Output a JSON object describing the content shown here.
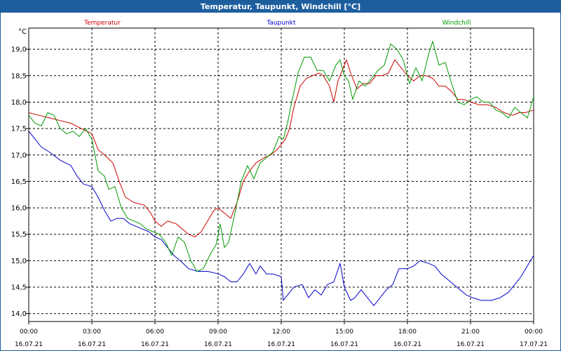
{
  "window": {
    "title": "Temperatur, Taupunkt, Windchill [°C]"
  },
  "chart_data": {
    "type": "line",
    "title": "Temperatur, Taupunkt, Windchill [°C]",
    "ylabel": "°C",
    "xlabel": "",
    "ylim": [
      13.85,
      19.4
    ],
    "xlim": [
      0,
      24
    ],
    "grid": true,
    "yticks": [
      14.0,
      14.5,
      15.0,
      15.5,
      16.0,
      16.5,
      17.0,
      17.5,
      18.0,
      18.5,
      19.0
    ],
    "ytick_labels": [
      "14,0",
      "14,5",
      "15,0",
      "15,5",
      "16,0",
      "16,5",
      "17,0",
      "17,5",
      "18,0",
      "18,5",
      "19,0"
    ],
    "xticks": [
      {
        "x": 0,
        "time": "00:00",
        "date": "16.07.21"
      },
      {
        "x": 3,
        "time": "03:00",
        "date": "16.07.21"
      },
      {
        "x": 6,
        "time": "06:00",
        "date": "16.07.21"
      },
      {
        "x": 9,
        "time": "09:00",
        "date": "16.07.21"
      },
      {
        "x": 12,
        "time": "12:00",
        "date": "16.07.21"
      },
      {
        "x": 15,
        "time": "15:00",
        "date": "16.07.21"
      },
      {
        "x": 18,
        "time": "18:00",
        "date": "16.07.21"
      },
      {
        "x": 21,
        "time": "21:00",
        "date": "16.07.21"
      },
      {
        "x": 24,
        "time": "00:00",
        "date": "17.07.21"
      }
    ],
    "series": [
      {
        "name": "Temperatur",
        "color": "#cc0000",
        "points": [
          [
            0,
            17.8
          ],
          [
            0.5,
            17.75
          ],
          [
            1,
            17.7
          ],
          [
            1.5,
            17.65
          ],
          [
            2,
            17.6
          ],
          [
            2.5,
            17.5
          ],
          [
            3,
            17.4
          ],
          [
            3.3,
            17.1
          ],
          [
            3.6,
            17.0
          ],
          [
            4,
            16.85
          ],
          [
            4.3,
            16.5
          ],
          [
            4.6,
            16.2
          ],
          [
            5,
            16.1
          ],
          [
            5.5,
            16.05
          ],
          [
            5.8,
            15.9
          ],
          [
            6,
            15.75
          ],
          [
            6.3,
            15.65
          ],
          [
            6.6,
            15.75
          ],
          [
            7,
            15.7
          ],
          [
            7.3,
            15.6
          ],
          [
            7.6,
            15.5
          ],
          [
            7.9,
            15.45
          ],
          [
            8.2,
            15.55
          ],
          [
            8.5,
            15.75
          ],
          [
            8.8,
            15.95
          ],
          [
            9.0,
            16.0
          ],
          [
            9.3,
            15.9
          ],
          [
            9.6,
            15.8
          ],
          [
            9.9,
            16.1
          ],
          [
            10.2,
            16.5
          ],
          [
            10.5,
            16.7
          ],
          [
            10.8,
            16.85
          ],
          [
            11.2,
            16.95
          ],
          [
            11.5,
            17.0
          ],
          [
            11.8,
            17.1
          ],
          [
            12.0,
            17.2
          ],
          [
            12.2,
            17.3
          ],
          [
            12.4,
            17.5
          ],
          [
            12.6,
            17.9
          ],
          [
            12.9,
            18.3
          ],
          [
            13.2,
            18.45
          ],
          [
            13.5,
            18.5
          ],
          [
            13.8,
            18.55
          ],
          [
            14.0,
            18.5
          ],
          [
            14.3,
            18.3
          ],
          [
            14.5,
            18.0
          ],
          [
            14.7,
            18.4
          ],
          [
            14.9,
            18.6
          ],
          [
            15.1,
            18.8
          ],
          [
            15.3,
            18.55
          ],
          [
            15.6,
            18.25
          ],
          [
            15.9,
            18.35
          ],
          [
            16.2,
            18.35
          ],
          [
            16.5,
            18.5
          ],
          [
            16.8,
            18.5
          ],
          [
            17.1,
            18.55
          ],
          [
            17.4,
            18.8
          ],
          [
            17.7,
            18.65
          ],
          [
            18.0,
            18.5
          ],
          [
            18.3,
            18.4
          ],
          [
            18.6,
            18.5
          ],
          [
            18.9,
            18.5
          ],
          [
            19.2,
            18.45
          ],
          [
            19.5,
            18.3
          ],
          [
            19.8,
            18.3
          ],
          [
            20.1,
            18.2
          ],
          [
            20.4,
            18.05
          ],
          [
            20.7,
            18.05
          ],
          [
            21.0,
            18.0
          ],
          [
            21.4,
            17.95
          ],
          [
            21.8,
            17.95
          ],
          [
            22.2,
            17.9
          ],
          [
            22.6,
            17.8
          ],
          [
            23.0,
            17.75
          ],
          [
            23.3,
            17.8
          ],
          [
            23.6,
            17.8
          ],
          [
            24.0,
            17.85
          ]
        ]
      },
      {
        "name": "Taupunkt",
        "color": "#0000cc",
        "points": [
          [
            0,
            17.45
          ],
          [
            0.3,
            17.3
          ],
          [
            0.6,
            17.15
          ],
          [
            1,
            17.05
          ],
          [
            1.5,
            16.9
          ],
          [
            2,
            16.8
          ],
          [
            2.3,
            16.6
          ],
          [
            2.6,
            16.45
          ],
          [
            3,
            16.4
          ],
          [
            3.3,
            16.2
          ],
          [
            3.6,
            15.95
          ],
          [
            3.9,
            15.75
          ],
          [
            4.2,
            15.8
          ],
          [
            4.5,
            15.8
          ],
          [
            4.8,
            15.7
          ],
          [
            5.1,
            15.65
          ],
          [
            5.4,
            15.6
          ],
          [
            5.7,
            15.55
          ],
          [
            6.0,
            15.45
          ],
          [
            6.3,
            15.4
          ],
          [
            6.6,
            15.25
          ],
          [
            6.9,
            15.1
          ],
          [
            7.2,
            15.0
          ],
          [
            7.6,
            14.85
          ],
          [
            8.0,
            14.8
          ],
          [
            8.5,
            14.8
          ],
          [
            9.0,
            14.75
          ],
          [
            9.3,
            14.7
          ],
          [
            9.6,
            14.6
          ],
          [
            9.9,
            14.6
          ],
          [
            10.2,
            14.75
          ],
          [
            10.5,
            14.95
          ],
          [
            10.8,
            14.75
          ],
          [
            11.0,
            14.9
          ],
          [
            11.3,
            14.75
          ],
          [
            11.6,
            14.75
          ],
          [
            12.0,
            14.7
          ],
          [
            12.1,
            14.25
          ],
          [
            12.3,
            14.35
          ],
          [
            12.6,
            14.5
          ],
          [
            13.0,
            14.55
          ],
          [
            13.3,
            14.3
          ],
          [
            13.6,
            14.45
          ],
          [
            13.9,
            14.35
          ],
          [
            14.2,
            14.55
          ],
          [
            14.5,
            14.6
          ],
          [
            14.8,
            14.95
          ],
          [
            15.0,
            14.5
          ],
          [
            15.3,
            14.25
          ],
          [
            15.5,
            14.3
          ],
          [
            15.8,
            14.45
          ],
          [
            16.1,
            14.3
          ],
          [
            16.4,
            14.15
          ],
          [
            16.7,
            14.3
          ],
          [
            17.0,
            14.45
          ],
          [
            17.3,
            14.55
          ],
          [
            17.6,
            14.85
          ],
          [
            18.0,
            14.85
          ],
          [
            18.3,
            14.9
          ],
          [
            18.6,
            15.0
          ],
          [
            19.0,
            14.95
          ],
          [
            19.3,
            14.9
          ],
          [
            19.6,
            14.75
          ],
          [
            19.9,
            14.65
          ],
          [
            20.2,
            14.55
          ],
          [
            20.5,
            14.45
          ],
          [
            20.8,
            14.35
          ],
          [
            21.1,
            14.3
          ],
          [
            21.5,
            14.25
          ],
          [
            22.0,
            14.25
          ],
          [
            22.4,
            14.3
          ],
          [
            22.8,
            14.4
          ],
          [
            23.1,
            14.55
          ],
          [
            23.4,
            14.7
          ],
          [
            23.7,
            14.9
          ],
          [
            24.0,
            15.1
          ]
        ]
      },
      {
        "name": "Windchill",
        "color": "#009900",
        "points": [
          [
            0,
            17.75
          ],
          [
            0.3,
            17.6
          ],
          [
            0.6,
            17.55
          ],
          [
            0.9,
            17.8
          ],
          [
            1.2,
            17.75
          ],
          [
            1.5,
            17.5
          ],
          [
            1.8,
            17.4
          ],
          [
            2.1,
            17.45
          ],
          [
            2.4,
            17.35
          ],
          [
            2.7,
            17.5
          ],
          [
            3.0,
            17.3
          ],
          [
            3.3,
            16.7
          ],
          [
            3.6,
            16.6
          ],
          [
            3.8,
            16.35
          ],
          [
            4.1,
            16.4
          ],
          [
            4.4,
            16.0
          ],
          [
            4.7,
            15.8
          ],
          [
            5.0,
            15.75
          ],
          [
            5.3,
            15.7
          ],
          [
            5.6,
            15.6
          ],
          [
            5.9,
            15.55
          ],
          [
            6.2,
            15.5
          ],
          [
            6.5,
            15.35
          ],
          [
            6.8,
            15.1
          ],
          [
            7.1,
            15.45
          ],
          [
            7.4,
            15.35
          ],
          [
            7.7,
            15.0
          ],
          [
            8.0,
            14.8
          ],
          [
            8.3,
            14.85
          ],
          [
            8.6,
            15.1
          ],
          [
            8.9,
            15.3
          ],
          [
            9.1,
            15.7
          ],
          [
            9.3,
            15.25
          ],
          [
            9.5,
            15.35
          ],
          [
            9.8,
            15.9
          ],
          [
            10.1,
            16.5
          ],
          [
            10.4,
            16.8
          ],
          [
            10.7,
            16.55
          ],
          [
            11.0,
            16.85
          ],
          [
            11.3,
            16.95
          ],
          [
            11.6,
            17.05
          ],
          [
            11.9,
            17.35
          ],
          [
            12.1,
            17.3
          ],
          [
            12.3,
            17.6
          ],
          [
            12.5,
            18.0
          ],
          [
            12.8,
            18.55
          ],
          [
            13.1,
            18.85
          ],
          [
            13.4,
            18.85
          ],
          [
            13.7,
            18.6
          ],
          [
            14.0,
            18.6
          ],
          [
            14.3,
            18.4
          ],
          [
            14.6,
            18.7
          ],
          [
            14.8,
            18.8
          ],
          [
            15.0,
            18.5
          ],
          [
            15.2,
            18.4
          ],
          [
            15.4,
            18.05
          ],
          [
            15.7,
            18.4
          ],
          [
            16.0,
            18.3
          ],
          [
            16.3,
            18.45
          ],
          [
            16.6,
            18.6
          ],
          [
            16.9,
            18.7
          ],
          [
            17.2,
            19.1
          ],
          [
            17.5,
            19.0
          ],
          [
            17.8,
            18.8
          ],
          [
            18.1,
            18.35
          ],
          [
            18.4,
            18.65
          ],
          [
            18.7,
            18.4
          ],
          [
            19.0,
            18.9
          ],
          [
            19.2,
            19.15
          ],
          [
            19.5,
            18.7
          ],
          [
            19.8,
            18.75
          ],
          [
            20.1,
            18.35
          ],
          [
            20.4,
            18.0
          ],
          [
            20.7,
            17.95
          ],
          [
            21.0,
            18.05
          ],
          [
            21.3,
            18.1
          ],
          [
            21.6,
            18.0
          ],
          [
            21.9,
            18.0
          ],
          [
            22.2,
            17.85
          ],
          [
            22.5,
            17.8
          ],
          [
            22.8,
            17.7
          ],
          [
            23.1,
            17.9
          ],
          [
            23.4,
            17.8
          ],
          [
            23.7,
            17.7
          ],
          [
            24.0,
            18.1
          ]
        ]
      }
    ]
  }
}
